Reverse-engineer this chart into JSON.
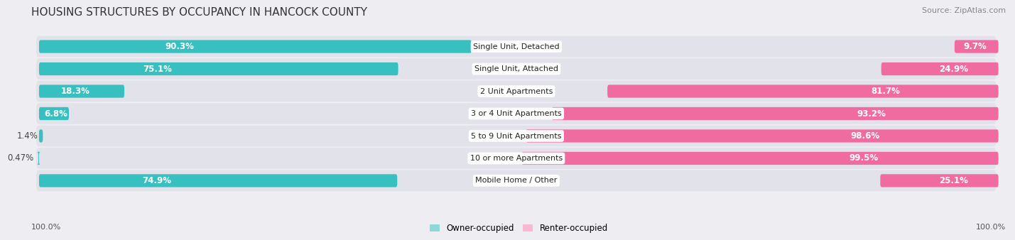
{
  "title": "HOUSING STRUCTURES BY OCCUPANCY IN HANCOCK COUNTY",
  "source": "Source: ZipAtlas.com",
  "categories": [
    "Single Unit, Detached",
    "Single Unit, Attached",
    "2 Unit Apartments",
    "3 or 4 Unit Apartments",
    "5 to 9 Unit Apartments",
    "10 or more Apartments",
    "Mobile Home / Other"
  ],
  "owner_pct": [
    90.3,
    75.1,
    18.3,
    6.8,
    1.4,
    0.47,
    74.9
  ],
  "renter_pct": [
    9.7,
    24.9,
    81.7,
    93.2,
    98.6,
    99.5,
    25.1
  ],
  "owner_color": "#38bfbf",
  "renter_color": "#f06ba0",
  "owner_light_color": "#90d8d8",
  "renter_light_color": "#f8b8d0",
  "bg_color": "#ededf2",
  "row_bg_color": "#e2e2ea",
  "label_bg_color": "#ffffff",
  "title_fontsize": 11,
  "source_fontsize": 8,
  "bar_label_fontsize": 8.5,
  "cat_label_fontsize": 8,
  "legend_fontsize": 8.5,
  "footer_fontsize": 8
}
